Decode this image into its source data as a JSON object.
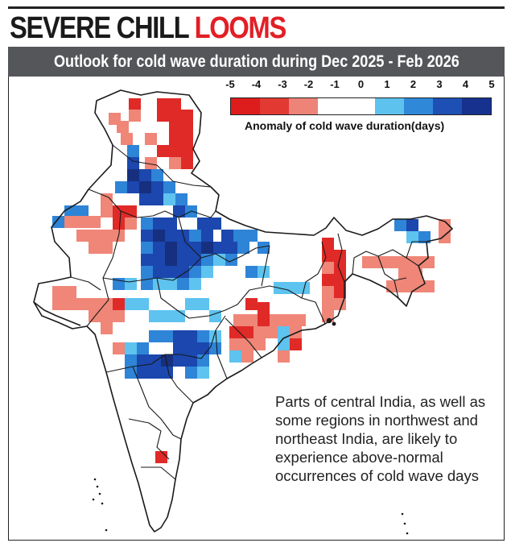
{
  "headline": {
    "main": "SEVERE CHILL",
    "accent": "LOOMS"
  },
  "subheadline": "Outlook for cold wave duration during Dec 2025 - Feb 2026",
  "legend": {
    "ticks": [
      "-5",
      "-4",
      "-3",
      "-2",
      "-1",
      "0",
      "1",
      "2",
      "3",
      "4",
      "5"
    ],
    "colors": [
      "#dd1c1c",
      "#e23a33",
      "#ee8378",
      "#ffffff",
      "#ffffff",
      "#5ec2ee",
      "#2f88d8",
      "#1d4fb4",
      "#17318f"
    ],
    "title": "Anomaly of cold wave duration(days)"
  },
  "map": {
    "anomaly_cells_note": "gridded forecast anomaly shown over India outline",
    "colors": {
      "outline": "#1a1a1a",
      "coastline": "#1a1a1a"
    }
  },
  "note": "Parts of central India, as well as some regions in northwest and northeast India, are likely to experience above-normal occurrences of cold wave days"
}
